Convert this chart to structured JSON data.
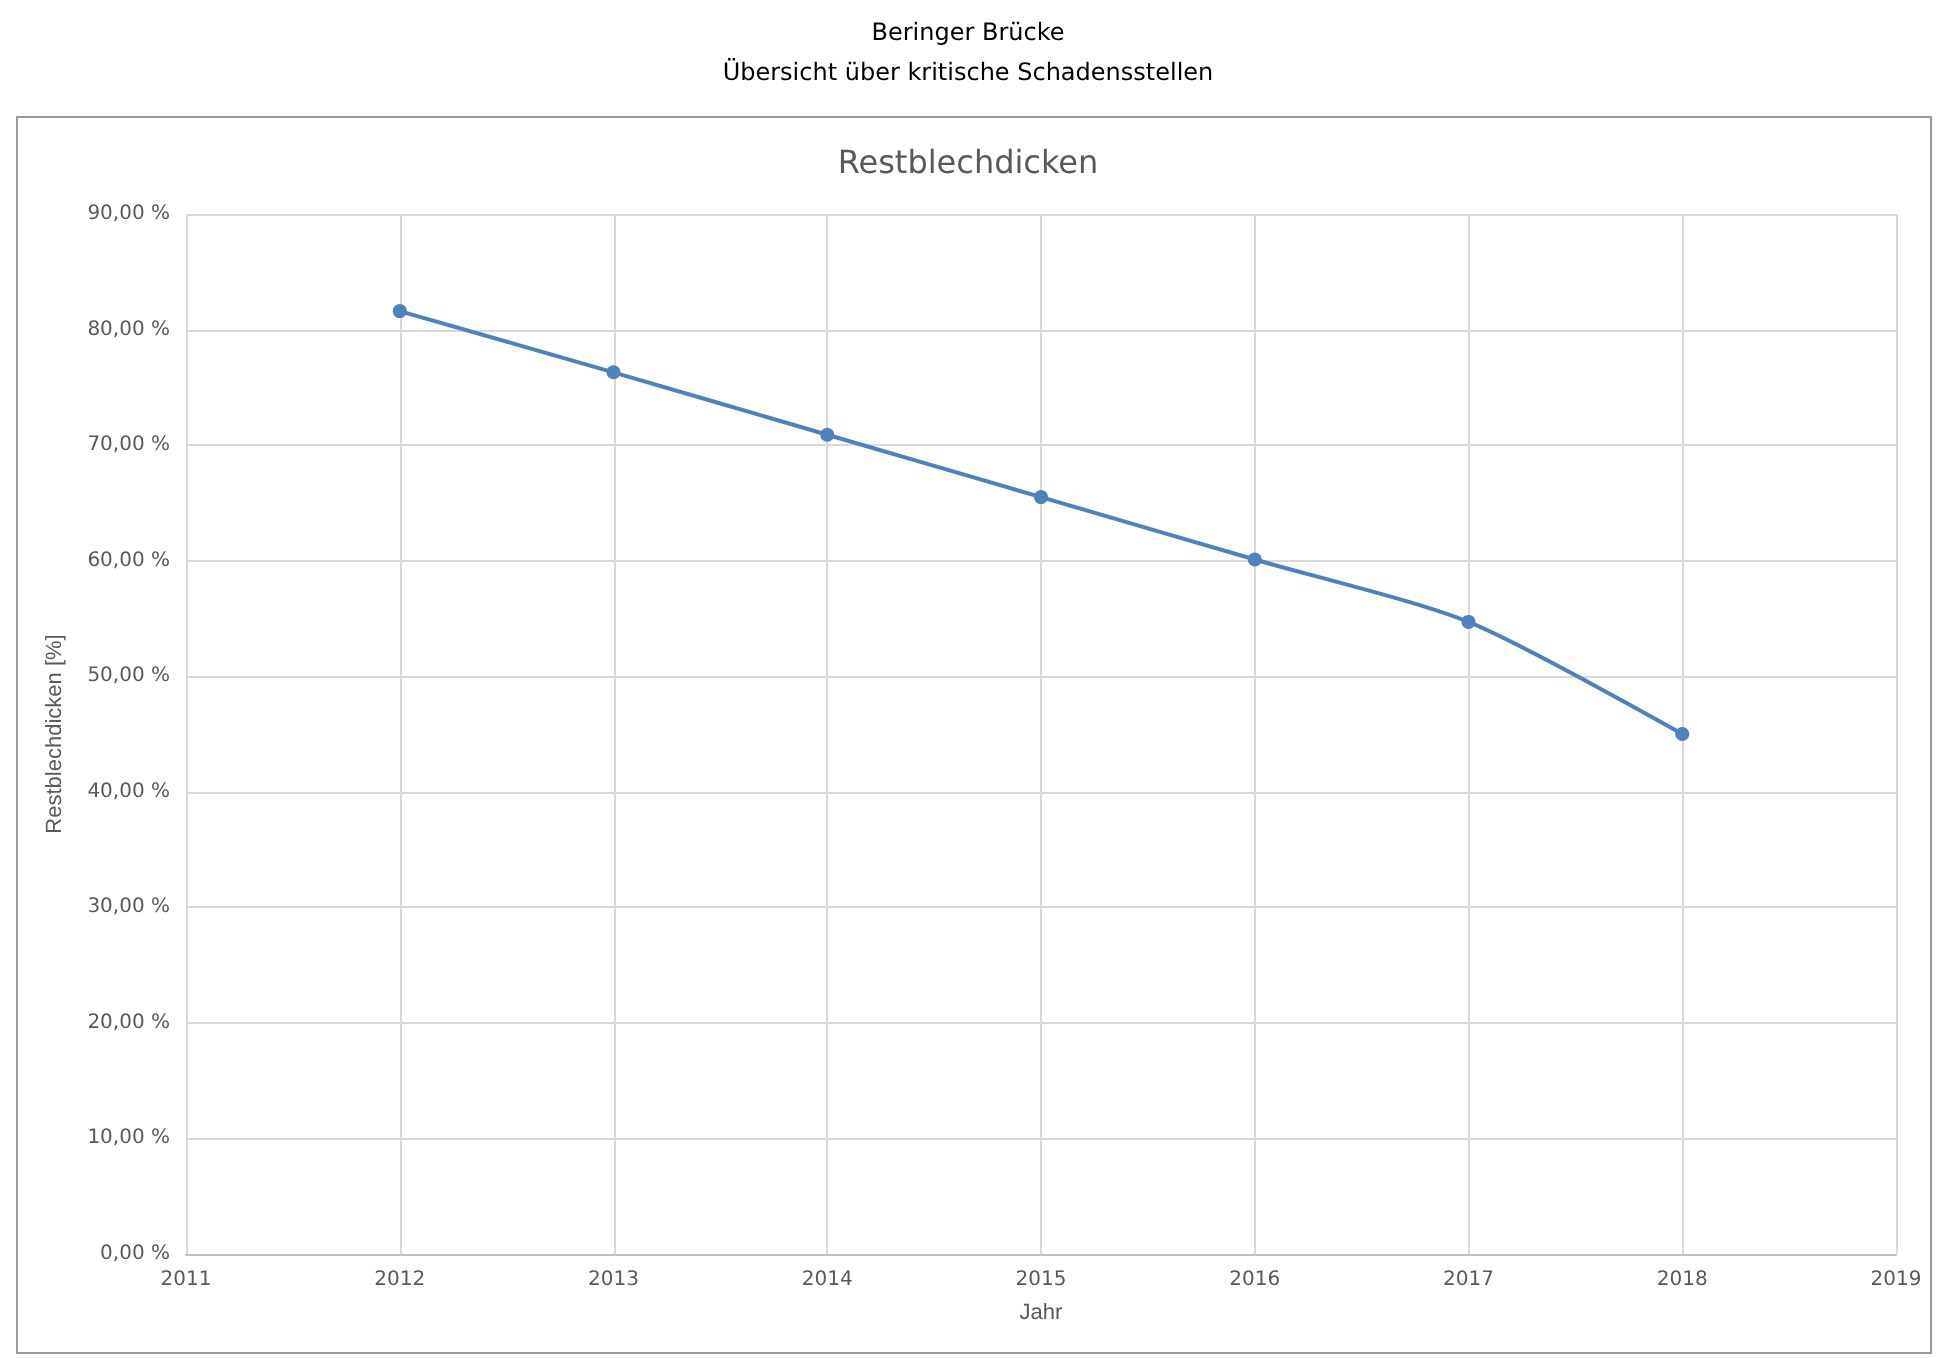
{
  "chart_data": {
    "type": "line",
    "title": "Restblechdicken",
    "xlabel": "Jahr",
    "ylabel": "Restblechdicken [%]",
    "annotations": [
      "Beringer Brücke",
      "Übersicht über kritische Schadensstellen"
    ],
    "x": [
      2012,
      2013,
      2014,
      2015,
      2016,
      2017,
      2018
    ],
    "series": [
      {
        "color": "#4f81bd",
        "values": [
          81.6,
          76.3,
          70.9,
          65.5,
          60.1,
          54.7,
          45.0
        ]
      }
    ],
    "xlim": [
      2011,
      2019
    ],
    "xticks": [
      2011,
      2012,
      2013,
      2014,
      2015,
      2016,
      2017,
      2018,
      2019
    ],
    "ylim": [
      0,
      90
    ],
    "yticks": [
      {
        "value": 0,
        "label": "0,00 %"
      },
      {
        "value": 10,
        "label": "10,00 %"
      },
      {
        "value": 20,
        "label": "20,00 %"
      },
      {
        "value": 30,
        "label": "30,00 %"
      },
      {
        "value": 40,
        "label": "40,00 %"
      },
      {
        "value": 50,
        "label": "50,00 %"
      },
      {
        "value": 60,
        "label": "60,00 %"
      },
      {
        "value": 70,
        "label": "70,00 %"
      },
      {
        "value": 80,
        "label": "80,00 %"
      },
      {
        "value": 90,
        "label": "90,00 %"
      }
    ],
    "grid": true,
    "marker": "circle",
    "line_style": "solid"
  }
}
